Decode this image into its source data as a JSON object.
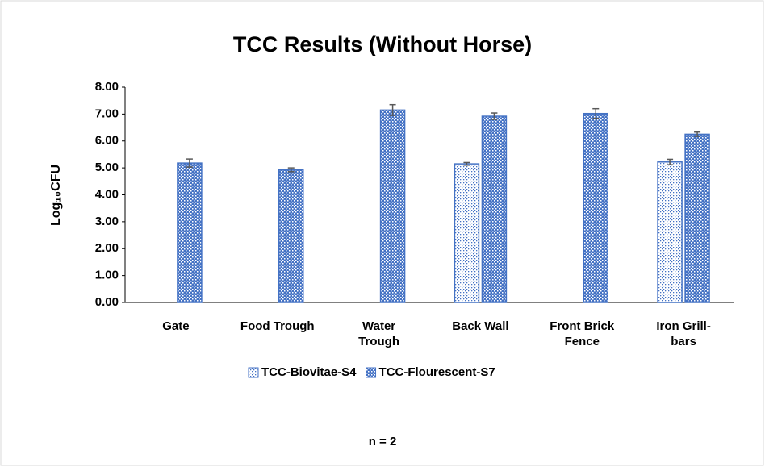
{
  "chart_data": {
    "type": "bar",
    "title": "TCC Results (Without Horse)",
    "ylabel": "Log₁₀CFU",
    "categories": [
      "Gate",
      "Food Trough",
      "Water Trough",
      "Back Wall",
      "Front Brick Fence",
      "Iron Grill-bars"
    ],
    "series": [
      {
        "name": "TCC-Biovitae-S4",
        "color": "#4472c4",
        "values": [
          null,
          null,
          null,
          5.15,
          null,
          5.22
        ],
        "errors": [
          null,
          null,
          null,
          0.05,
          null,
          0.1
        ]
      },
      {
        "name": "TCC-Flourescent-S7",
        "color": "#4472c4",
        "values": [
          5.18,
          4.93,
          7.15,
          6.92,
          7.02,
          6.25
        ],
        "errors": [
          0.15,
          0.07,
          0.2,
          0.12,
          0.18,
          0.08
        ]
      }
    ],
    "ylim": [
      0,
      8
    ],
    "yticks": [
      {
        "value": 0,
        "label": "0.00"
      },
      {
        "value": 1,
        "label": "1.00"
      },
      {
        "value": 2,
        "label": "2.00"
      },
      {
        "value": 3,
        "label": "3.00"
      },
      {
        "value": 4,
        "label": "4.00"
      },
      {
        "value": 5,
        "label": "5.00"
      },
      {
        "value": 6,
        "label": "6.00"
      },
      {
        "value": 7,
        "label": "7.00"
      },
      {
        "value": 8,
        "label": "8.00"
      }
    ],
    "legend": "bottom",
    "annotation": "n = 2"
  }
}
